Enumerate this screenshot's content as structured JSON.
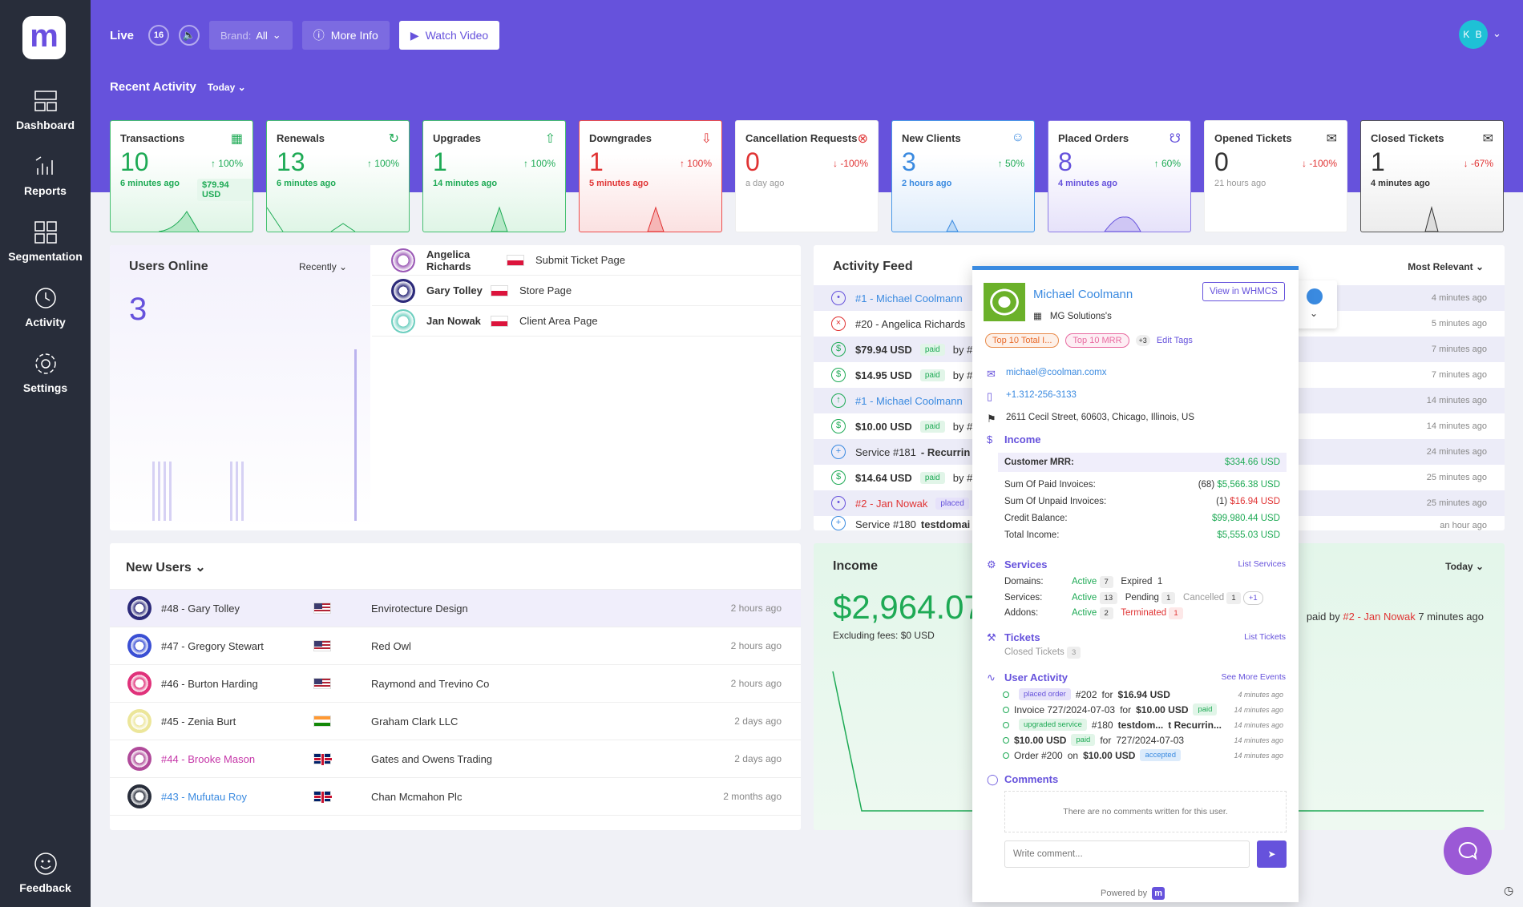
{
  "nav": {
    "logo": "m",
    "items": [
      {
        "label": "Dashboard",
        "icon": "dashboard-icon"
      },
      {
        "label": "Reports",
        "icon": "reports-icon"
      },
      {
        "label": "Segmentation",
        "icon": "segmentation-icon"
      },
      {
        "label": "Activity",
        "icon": "activity-icon"
      },
      {
        "label": "Settings",
        "icon": "gear-icon"
      }
    ],
    "feedback": "Feedback"
  },
  "topbar": {
    "live": "Live",
    "live_count": "16",
    "brand_label": "Brand:",
    "brand_value": "All",
    "more_info": "More Info",
    "watch_video": "Watch Video",
    "user_initials": "K B"
  },
  "recent": {
    "title": "Recent Activity",
    "range": "Today"
  },
  "cards": [
    {
      "title": "Transactions",
      "value": "10",
      "pct": "100%",
      "ago": "6 minutes ago",
      "amount": "$79.94 USD",
      "color": "#1eaa55",
      "dir": "up"
    },
    {
      "title": "Renewals",
      "value": "13",
      "pct": "100%",
      "ago": "6 minutes ago",
      "dir": "up"
    },
    {
      "title": "Upgrades",
      "value": "1",
      "pct": "100%",
      "ago": "14 minutes ago",
      "dir": "up"
    },
    {
      "title": "Downgrades",
      "value": "1",
      "pct": "100%",
      "ago": "5 minutes ago",
      "dir": "up"
    },
    {
      "title": "Cancellation Requests",
      "value": "0",
      "pct": "-100%",
      "ago": "a day ago",
      "dir": "down"
    },
    {
      "title": "New Clients",
      "value": "3",
      "pct": "50%",
      "ago": "2 hours ago",
      "dir": "up"
    },
    {
      "title": "Placed Orders",
      "value": "8",
      "pct": "60%",
      "ago": "4 minutes ago",
      "dir": "up"
    },
    {
      "title": "Opened Tickets",
      "value": "0",
      "pct": "-100%",
      "ago": "21 hours ago",
      "dir": "down"
    },
    {
      "title": "Closed Tickets",
      "value": "1",
      "pct": "-67%",
      "ago": "4 minutes ago",
      "dir": "down"
    }
  ],
  "users_online": {
    "title": "Users Online",
    "filter": "Recently",
    "count": "3",
    "rows": [
      {
        "name": "Angelica Richards",
        "page": "Submit Ticket Page"
      },
      {
        "name": "Gary Tolley",
        "page": "Store Page"
      },
      {
        "name": "Jan Nowak",
        "page": "Client Area Page"
      }
    ]
  },
  "activity_feed": {
    "title": "Activity Feed",
    "sort": "Most Relevant",
    "rows": [
      {
        "text": "#1 - Michael Coolmann",
        "time": "4 minutes ago"
      },
      {
        "text": "#20 - Angelica Richards",
        "time": "5 minutes ago"
      },
      {
        "text": "$79.94 USD",
        "badge": "paid",
        "by": "by #",
        "time": "7 minutes ago"
      },
      {
        "text": "$14.95 USD",
        "badge": "paid",
        "by": "by #",
        "time": "7 minutes ago"
      },
      {
        "text": "#1 - Michael Coolmann",
        "time": "14 minutes ago"
      },
      {
        "text": "$10.00 USD",
        "badge": "paid",
        "by": "by #",
        "time": "14 minutes ago"
      },
      {
        "text": "Service #181",
        "extra": "- Recurrin",
        "time": "24 minutes ago"
      },
      {
        "text": "$14.64 USD",
        "badge": "paid",
        "by": "by #",
        "time": "25 minutes ago"
      },
      {
        "text": "#2 - Jan Nowak",
        "badge": "placed",
        "time": "25 minutes ago"
      },
      {
        "text": "Service #180",
        "extra": "testdomai",
        "time": "an hour ago"
      }
    ]
  },
  "new_users": {
    "title": "New Users",
    "rows": [
      {
        "name": "#48 - Gary Tolley",
        "company": "Envirotecture Design",
        "time": "2 hours ago",
        "flag": "us"
      },
      {
        "name": "#47 - Gregory Stewart",
        "company": "Red Owl",
        "time": "2 hours ago",
        "flag": "us"
      },
      {
        "name": "#46 - Burton Harding",
        "company": "Raymond and Trevino Co",
        "time": "2 hours ago",
        "flag": "us"
      },
      {
        "name": "#45 - Zenia Burt",
        "company": "Graham Clark LLC",
        "time": "2 days ago",
        "flag": "in"
      },
      {
        "name": "#44 - Brooke Mason",
        "company": "Gates and Owens Trading",
        "time": "2 days ago",
        "flag": "uk"
      },
      {
        "name": "#43 - Mufutau Roy",
        "company": "Chan Mcmahon Plc",
        "time": "2 months ago",
        "flag": "uk"
      }
    ]
  },
  "income": {
    "title": "Income",
    "range": "Today",
    "value": "$2,964.07",
    "fees": "Excluding fees: $0 USD",
    "paid_by": "paid by",
    "paid_by_client": "#2 - Jan Nowak",
    "paid_time": "7 minutes ago"
  },
  "popup": {
    "name": "Michael Coolmann",
    "view_btn": "View in WHMCS",
    "company": "MG Solutions's",
    "tags": [
      "Top 10 Total I...",
      "Top 10 MRR"
    ],
    "more_tags": "+3",
    "edit_tags": "Edit Tags",
    "email": "michael@coolman.comx",
    "phone": "+1.312-256-3133",
    "address": "2611 Cecil Street, 60603, Chicago, Illinois, US",
    "income_title": "Income",
    "mrr_label": "Customer MRR:",
    "mrr": "$334.66 USD",
    "paid_label": "Sum Of Paid Invoices:",
    "paid_count": "(68)",
    "paid": "$5,566.38 USD",
    "unpaid_label": "Sum Of Unpaid Invoices:",
    "unpaid_count": "(1)",
    "unpaid": "$16.94 USD",
    "credit_label": "Credit Balance:",
    "credit": "$99,980.44 USD",
    "total_label": "Total Income:",
    "total": "$5,555.03 USD",
    "services_title": "Services",
    "list_services": "List Services",
    "domains_label": "Domains:",
    "services_label": "Services:",
    "addons_label": "Addons:",
    "active": "Active",
    "expired": "Expired",
    "pending": "Pending",
    "cancelled": "Cancelled",
    "terminated": "Terminated",
    "d_active": "7",
    "d_expired": "1",
    "s_active": "13",
    "s_pending": "1",
    "s_cancelled": "1",
    "s_more": "+1",
    "a_active": "2",
    "a_terminated": "1",
    "tickets_title": "Tickets",
    "list_tickets": "List Tickets",
    "closed_tickets": "Closed Tickets",
    "closed_count": "3",
    "ua_title": "User Activity",
    "see_more": "See More Events",
    "ua": [
      {
        "chip": "placed order",
        "text": "#202",
        "for": "for",
        "amt": "$16.94 USD",
        "time": "4 minutes ago"
      },
      {
        "text": "Invoice 727/2024-07-03",
        "for": "for",
        "amt": "$10.00 USD",
        "chip2": "paid",
        "time": "14 minutes ago"
      },
      {
        "chip": "upgraded service",
        "text": "#180",
        "amt": "testdom...",
        "extra": "t Recurrin...",
        "time": "14 minutes ago"
      },
      {
        "amt": "$10.00 USD",
        "chip2": "paid",
        "for": "for",
        "text": "727/2024-07-03",
        "time": "14 minutes ago"
      },
      {
        "text": "Order #200",
        "for": "on",
        "amt": "$10.00 USD",
        "chip3": "accepted",
        "time": "14 minutes ago"
      }
    ],
    "comments_title": "Comments",
    "no_comments": "There are no comments written for this user.",
    "write_placeholder": "Write comment...",
    "powered": "Powered by"
  }
}
